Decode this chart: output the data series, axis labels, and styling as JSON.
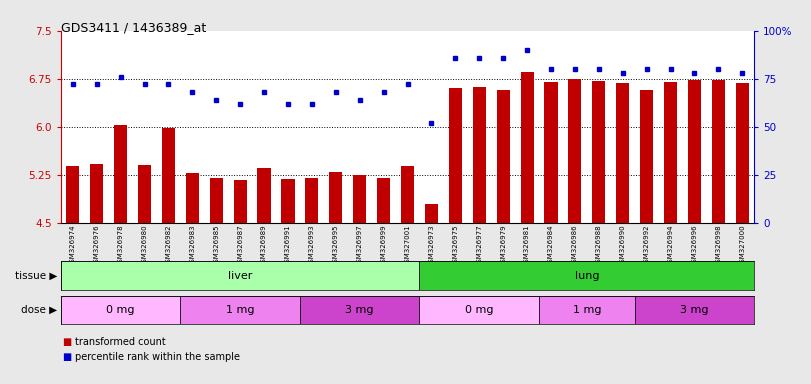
{
  "title": "GDS3411 / 1436389_at",
  "samples": [
    "GSM326974",
    "GSM326976",
    "GSM326978",
    "GSM326980",
    "GSM326982",
    "GSM326983",
    "GSM326985",
    "GSM326987",
    "GSM326989",
    "GSM326991",
    "GSM326993",
    "GSM326995",
    "GSM326997",
    "GSM326999",
    "GSM327001",
    "GSM326973",
    "GSM326975",
    "GSM326977",
    "GSM326979",
    "GSM326981",
    "GSM326984",
    "GSM326986",
    "GSM326988",
    "GSM326990",
    "GSM326992",
    "GSM326994",
    "GSM326996",
    "GSM326998",
    "GSM327000"
  ],
  "bar_values": [
    5.38,
    5.42,
    6.02,
    5.4,
    5.98,
    5.28,
    5.2,
    5.16,
    5.35,
    5.19,
    5.2,
    5.3,
    5.24,
    5.2,
    5.38,
    4.8,
    6.6,
    6.62,
    6.58,
    6.85,
    6.7,
    6.75,
    6.72,
    6.68,
    6.58,
    6.7,
    6.73,
    6.73,
    6.68
  ],
  "percentile_values": [
    72,
    72,
    76,
    72,
    72,
    68,
    64,
    62,
    68,
    62,
    62,
    68,
    64,
    68,
    72,
    52,
    86,
    86,
    86,
    90,
    80,
    80,
    80,
    78,
    80,
    80,
    78,
    80,
    78
  ],
  "bar_color": "#c00000",
  "dot_color": "#0000cc",
  "ylim_left": [
    4.5,
    7.5
  ],
  "ylim_right": [
    0,
    100
  ],
  "yticks_left": [
    4.5,
    5.25,
    6.0,
    6.75,
    7.5
  ],
  "yticks_right": [
    0,
    25,
    50,
    75,
    100
  ],
  "ytick_labels_right": [
    "0",
    "25",
    "50",
    "75",
    "100%"
  ],
  "hlines": [
    5.25,
    6.0,
    6.75
  ],
  "tissue_groups": [
    {
      "label": "liver",
      "start": 0,
      "end": 15,
      "color": "#aaffaa"
    },
    {
      "label": "lung",
      "start": 15,
      "end": 29,
      "color": "#33cc33"
    }
  ],
  "dose_groups": [
    {
      "label": "0 mg",
      "start": 0,
      "end": 5,
      "color": "#ffb8ff"
    },
    {
      "label": "1 mg",
      "start": 5,
      "end": 10,
      "color": "#ee82ee"
    },
    {
      "label": "3 mg",
      "start": 10,
      "end": 15,
      "color": "#cc44cc"
    },
    {
      "label": "0 mg",
      "start": 15,
      "end": 20,
      "color": "#ffb8ff"
    },
    {
      "label": "1 mg",
      "start": 20,
      "end": 24,
      "color": "#ee82ee"
    },
    {
      "label": "3 mg",
      "start": 24,
      "end": 29,
      "color": "#cc44cc"
    }
  ],
  "legend_items": [
    {
      "label": "transformed count",
      "color": "#c00000"
    },
    {
      "label": "percentile rank within the sample",
      "color": "#0000cc"
    }
  ],
  "tissue_label": "tissue",
  "dose_label": "dose"
}
